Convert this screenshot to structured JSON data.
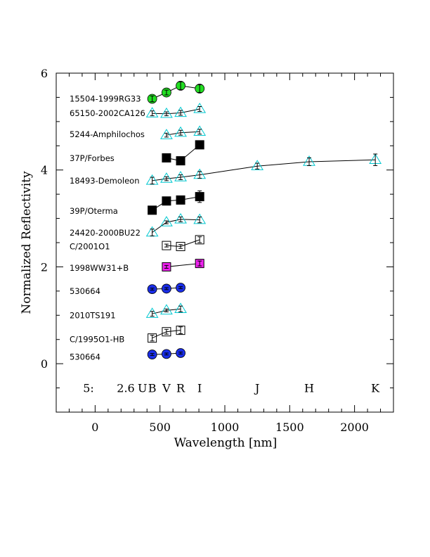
{
  "chart_data": {
    "type": "scatter",
    "xlabel": "Wavelength [nm]",
    "ylabel": "Normalized Reflectivity",
    "xlim": [
      -300,
      2300
    ],
    "ylim": [
      -1,
      6
    ],
    "xticks": [
      0,
      500,
      1000,
      1500,
      2000
    ],
    "yticks": [
      0,
      2,
      4,
      6
    ],
    "grid": false,
    "band_prefix": [
      "5:",
      "2.6"
    ],
    "bands": [
      {
        "label": "U",
        "x": 365
      },
      {
        "label": "B",
        "x": 440
      },
      {
        "label": "V",
        "x": 550
      },
      {
        "label": "R",
        "x": 659
      },
      {
        "label": "I",
        "x": 806
      },
      {
        "label": "J",
        "x": 1250
      },
      {
        "label": "H",
        "x": 1650
      },
      {
        "label": "K",
        "x": 2160
      }
    ],
    "series": [
      {
        "name": "15504-1999RG33",
        "label_y": 5.47,
        "marker": "circle",
        "fill": "#22dd22",
        "stroke": "#000000",
        "line": true,
        "points": [
          [
            440,
            5.47,
            0.06
          ],
          [
            550,
            5.6,
            0.05
          ],
          [
            659,
            5.74,
            0.08
          ],
          [
            806,
            5.68,
            0.08
          ]
        ]
      },
      {
        "name": "65150-2002CA126",
        "label_y": 5.17,
        "marker": "triangle",
        "fill": "none",
        "stroke": "#00c8d0",
        "line": true,
        "points": [
          [
            440,
            5.17,
            0.05
          ],
          [
            550,
            5.16,
            0.04
          ],
          [
            659,
            5.18,
            0.05
          ],
          [
            806,
            5.26,
            0.05
          ]
        ]
      },
      {
        "name": "5244-Amphilochos",
        "label_y": 4.74,
        "marker": "triangle",
        "fill": "none",
        "stroke": "#00c8d0",
        "line": true,
        "points": [
          [
            550,
            4.72,
            0.04
          ],
          [
            659,
            4.77,
            0.05
          ],
          [
            806,
            4.79,
            0.05
          ]
        ]
      },
      {
        "name": "37P/Forbes",
        "label_y": 4.24,
        "marker": "square",
        "fill": "#000000",
        "stroke": "#000000",
        "line": true,
        "points": [
          [
            550,
            4.25,
            0.04
          ],
          [
            659,
            4.19,
            0.05
          ],
          [
            806,
            4.52,
            0.05
          ]
        ]
      },
      {
        "name": "18493-Demoleon",
        "label_y": 3.78,
        "marker": "triangle",
        "fill": "none",
        "stroke": "#00c8d0",
        "line": true,
        "points": [
          [
            440,
            3.78,
            0.07
          ],
          [
            550,
            3.82,
            0.04
          ],
          [
            659,
            3.85,
            0.05
          ],
          [
            806,
            3.9,
            0.07
          ],
          [
            1250,
            4.08,
            0.06
          ],
          [
            1650,
            4.17,
            0.08
          ],
          [
            2160,
            4.21,
            0.12
          ]
        ]
      },
      {
        "name": "39P/Oterma",
        "label_y": 3.15,
        "marker": "square",
        "fill": "#000000",
        "stroke": "#000000",
        "line": true,
        "points": [
          [
            440,
            3.17,
            0.04
          ],
          [
            550,
            3.36,
            0.04
          ],
          [
            659,
            3.38,
            0.06
          ],
          [
            806,
            3.45,
            0.12
          ]
        ]
      },
      {
        "name": "24420-2000BU22",
        "label_y": 2.7,
        "marker": "triangle",
        "fill": "none",
        "stroke": "#00c8d0",
        "line": true,
        "points": [
          [
            440,
            2.71,
            0.07
          ],
          [
            550,
            2.92,
            0.03
          ],
          [
            659,
            2.98,
            0.05
          ],
          [
            806,
            2.97,
            0.06
          ]
        ]
      },
      {
        "name": "C/2001O1",
        "label_y": 2.42,
        "marker": "square",
        "fill": "none",
        "stroke": "#000000",
        "line": true,
        "points": [
          [
            550,
            2.44,
            0.03
          ],
          [
            659,
            2.42,
            0.04
          ],
          [
            806,
            2.56,
            0.06
          ]
        ]
      },
      {
        "name": "1998WW31+B",
        "label_y": 1.98,
        "marker": "square",
        "fill": "#ee22ee",
        "stroke": "#000000",
        "line": true,
        "points": [
          [
            550,
            2.0,
            0.03
          ],
          [
            806,
            2.07,
            0.05
          ]
        ]
      },
      {
        "name": "530664",
        "label_y": 1.5,
        "marker": "circle",
        "fill": "#1a2ee8",
        "stroke": "#000000",
        "line": true,
        "points": [
          [
            440,
            1.54,
            0.02
          ],
          [
            550,
            1.55,
            0.02
          ],
          [
            659,
            1.57,
            0.02
          ]
        ]
      },
      {
        "name": "2010TS191",
        "label_y": 1.0,
        "marker": "triangle",
        "fill": "none",
        "stroke": "#00c8d0",
        "line": true,
        "points": [
          [
            440,
            1.03,
            0.05
          ],
          [
            550,
            1.1,
            0.03
          ],
          [
            659,
            1.13,
            0.06
          ]
        ]
      },
      {
        "name": "C/1995O1-HB",
        "label_y": 0.5,
        "marker": "square",
        "fill": "none",
        "stroke": "#000000",
        "line": true,
        "points": [
          [
            440,
            0.53,
            0.06
          ],
          [
            550,
            0.66,
            0.05
          ],
          [
            659,
            0.69,
            0.07
          ]
        ]
      },
      {
        "name": "530664",
        "label_y": 0.14,
        "marker": "circle",
        "fill": "#1a2ee8",
        "stroke": "#000000",
        "line": true,
        "points": [
          [
            440,
            0.19,
            0.02
          ],
          [
            550,
            0.2,
            0.02
          ],
          [
            659,
            0.22,
            0.02
          ]
        ]
      }
    ]
  }
}
